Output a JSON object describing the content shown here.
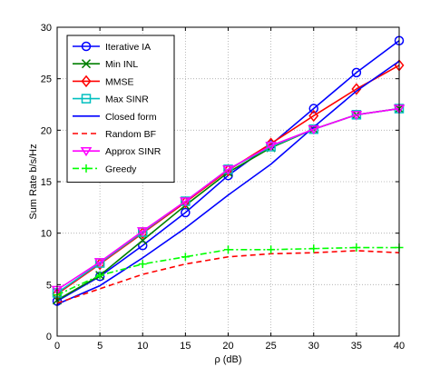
{
  "chart_data": {
    "type": "line",
    "title": "",
    "xlabel": "ρ (dB)",
    "ylabel": "Sum Rate b/s/Hz",
    "x": [
      0,
      5,
      10,
      15,
      20,
      25,
      30,
      35,
      40
    ],
    "xticks": [
      "0",
      "5",
      "10",
      "15",
      "20",
      "25",
      "30",
      "35",
      "40"
    ],
    "yticks": [
      "0",
      "5",
      "10",
      "15",
      "20",
      "25",
      "30"
    ],
    "xlim": [
      0,
      40
    ],
    "ylim": [
      0,
      30
    ],
    "grid": true,
    "grid_style": "dotted",
    "legend_position": "top-left",
    "series": [
      {
        "name": "Iterative IA",
        "color": "#0000ff",
        "dash": "solid",
        "marker": "circle",
        "values": [
          3.4,
          5.8,
          8.8,
          12.0,
          15.6,
          18.6,
          22.1,
          25.6,
          28.7
        ]
      },
      {
        "name": "Min INL",
        "color": "#007f00",
        "dash": "solid",
        "marker": "x",
        "values": [
          3.5,
          5.9,
          9.3,
          12.7,
          15.9,
          18.3,
          20.1,
          21.5,
          22.1
        ]
      },
      {
        "name": "MMSE",
        "color": "#ff0000",
        "dash": "solid",
        "marker": "diamond",
        "values": [
          4.1,
          7.0,
          10.0,
          13.0,
          16.1,
          18.7,
          21.4,
          24.0,
          26.3
        ]
      },
      {
        "name": "Max SINR",
        "color": "#00bfbf",
        "dash": "solid",
        "marker": "square",
        "values": [
          4.2,
          7.1,
          10.1,
          13.1,
          16.2,
          18.4,
          20.1,
          21.5,
          22.1
        ]
      },
      {
        "name": "Closed form",
        "color": "#0000ff",
        "dash": "solid",
        "marker": "none",
        "values": [
          3.1,
          4.9,
          7.6,
          10.5,
          13.7,
          16.7,
          20.3,
          23.8,
          26.7
        ]
      },
      {
        "name": "Random BF",
        "color": "#ff0000",
        "dash": "dashed",
        "marker": "none",
        "values": [
          3.2,
          4.6,
          6.0,
          7.0,
          7.7,
          8.0,
          8.1,
          8.3,
          8.1
        ]
      },
      {
        "name": "Approx SINR",
        "color": "#ff00ff",
        "dash": "solid",
        "marker": "triangle-down",
        "values": [
          4.5,
          7.2,
          10.2,
          13.1,
          16.2,
          18.5,
          20.1,
          21.5,
          22.1
        ]
      },
      {
        "name": "Greedy",
        "color": "#00ff00",
        "dash": "dashdot",
        "marker": "plus",
        "values": [
          4.0,
          5.9,
          7.0,
          7.7,
          8.4,
          8.4,
          8.5,
          8.6,
          8.6
        ]
      }
    ]
  }
}
